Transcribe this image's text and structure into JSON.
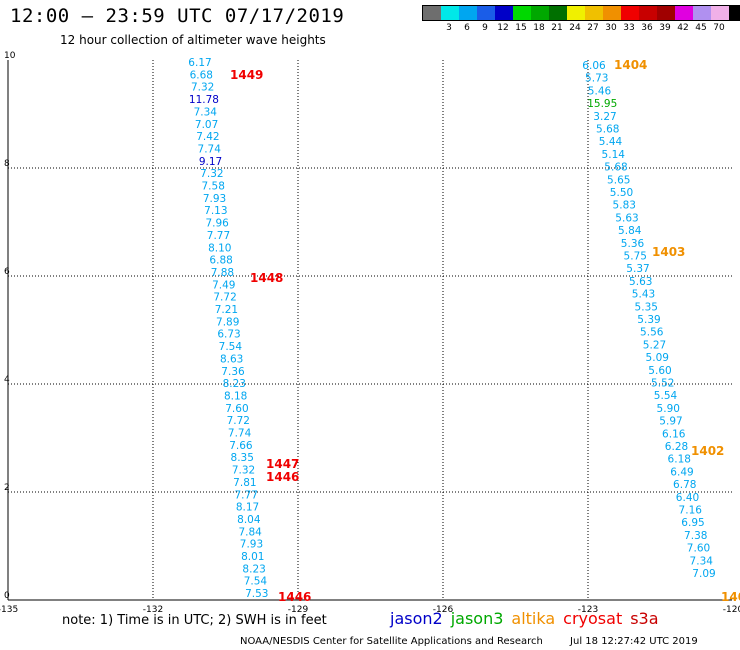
{
  "header": {
    "title": "12:00 – 23:59 UTC 07/17/2019",
    "subtitle": "12 hour collection of altimeter wave heights"
  },
  "legend": {
    "unit": "(ft)",
    "swatches": [
      {
        "color": "#6e6e6e",
        "label": ""
      },
      {
        "color": "#00e8e8",
        "label": "3"
      },
      {
        "color": "#00a6f0",
        "label": "6"
      },
      {
        "color": "#1a5de8",
        "label": "9"
      },
      {
        "color": "#0000c8",
        "label": "12"
      },
      {
        "color": "#00d800",
        "label": "15"
      },
      {
        "color": "#00a800",
        "label": "18"
      },
      {
        "color": "#007000",
        "label": "21"
      },
      {
        "color": "#f0f000",
        "label": "24"
      },
      {
        "color": "#f0c000",
        "label": "27"
      },
      {
        "color": "#f09000",
        "label": "30"
      },
      {
        "color": "#f00000",
        "label": "33"
      },
      {
        "color": "#c80000",
        "label": "36"
      },
      {
        "color": "#a00000",
        "label": "39"
      },
      {
        "color": "#e000e0",
        "label": "42"
      },
      {
        "color": "#b090f0",
        "label": "45"
      },
      {
        "color": "#f0b0e8",
        "label": "70"
      },
      {
        "color": "#000000",
        "label": ""
      }
    ]
  },
  "axes": {
    "x_ticks": [
      {
        "label": "-135"
      },
      {
        "label": "-132"
      },
      {
        "label": "-129"
      },
      {
        "label": "-126"
      },
      {
        "label": "-123"
      },
      {
        "label": "-120"
      }
    ],
    "y_ticks": [
      {
        "label": "0"
      },
      {
        "label": "2"
      },
      {
        "label": "4"
      },
      {
        "label": "6"
      },
      {
        "label": "8"
      },
      {
        "label": "10"
      }
    ]
  },
  "tracks": [
    {
      "name": "west-track",
      "values": [
        "6.17",
        "6.68",
        "7.32",
        "11.78",
        "7.34",
        "7.07",
        "7.42",
        "7.74",
        "9.17",
        "7.32",
        "7.58",
        "7.93",
        "7.13",
        "7.96",
        "7.77",
        "8.10",
        "6.88",
        "7.88",
        "7.49",
        "7.72",
        "7.21",
        "7.89",
        "6.73",
        "7.54",
        "8.63",
        "7.36",
        "8.23",
        "8.18",
        "7.60",
        "7.72",
        "7.74",
        "7.66",
        "8.35",
        "7.32",
        "7.81",
        "7.77",
        "8.17",
        "8.04",
        "7.84",
        "7.93",
        "8.01",
        "8.23",
        "7.54",
        "7.53"
      ],
      "colors": [
        "#00a6f0",
        "#00a6f0",
        "#00a6f0",
        "#0000c8",
        "#00a6f0",
        "#00a6f0",
        "#00a6f0",
        "#00a6f0",
        "#0000c8",
        "#00a6f0",
        "#00a6f0",
        "#00a6f0",
        "#00a6f0",
        "#00a6f0",
        "#00a6f0",
        "#00a6f0",
        "#00a6f0",
        "#00a6f0",
        "#00a6f0",
        "#00a6f0",
        "#00a6f0",
        "#00a6f0",
        "#00a6f0",
        "#00a6f0",
        "#00a6f0",
        "#00a6f0",
        "#00a6f0",
        "#00a6f0",
        "#00a6f0",
        "#00a6f0",
        "#00a6f0",
        "#00a6f0",
        "#00a6f0",
        "#00a6f0",
        "#00a6f0",
        "#00a6f0",
        "#00a6f0",
        "#00a6f0",
        "#00a6f0",
        "#00a6f0",
        "#00a6f0",
        "#00a6f0",
        "#00a6f0",
        "#00a6f0"
      ]
    },
    {
      "name": "east-track",
      "values": [
        "6.06",
        "5.73",
        "5.46",
        "15.95",
        "3.27",
        "5.68",
        "5.44",
        "5.14",
        "5.68",
        "5.65",
        "5.50",
        "5.83",
        "5.63",
        "5.84",
        "5.36",
        "5.75",
        "5.37",
        "5.63",
        "5.43",
        "5.35",
        "5.39",
        "5.56",
        "5.27",
        "5.09",
        "5.60",
        "5.52",
        "5.54",
        "5.90",
        "5.97",
        "6.16",
        "6.28",
        "6.18",
        "6.49",
        "6.78",
        "6.40",
        "7.16",
        "6.95",
        "7.38",
        "7.60",
        "7.34",
        "7.09"
      ],
      "colors": [
        "#00a6f0",
        "#00a6f0",
        "#00a6f0",
        "#00a800",
        "#00a6f0",
        "#00a6f0",
        "#00a6f0",
        "#00a6f0",
        "#00a6f0",
        "#00a6f0",
        "#00a6f0",
        "#00a6f0",
        "#00a6f0",
        "#00a6f0",
        "#00a6f0",
        "#00a6f0",
        "#00a6f0",
        "#00a6f0",
        "#00a6f0",
        "#00a6f0",
        "#00a6f0",
        "#00a6f0",
        "#00a6f0",
        "#00a6f0",
        "#00a6f0",
        "#00a6f0",
        "#00a6f0",
        "#00a6f0",
        "#00a6f0",
        "#00a6f0",
        "#00a6f0",
        "#00a6f0",
        "#00a6f0",
        "#00a6f0",
        "#00a6f0",
        "#00a6f0",
        "#00a6f0",
        "#00a6f0",
        "#00a6f0",
        "#00a6f0",
        "#00a6f0"
      ]
    }
  ],
  "time_labels": [
    {
      "text": "1449",
      "color": "#f00000"
    },
    {
      "text": "1448",
      "color": "#f00000"
    },
    {
      "text": "1447",
      "color": "#f00000"
    },
    {
      "text": "1446",
      "color": "#f00000"
    },
    {
      "text": "1446",
      "color": "#f00000"
    },
    {
      "text": "1404",
      "color": "#f09000"
    },
    {
      "text": "1403",
      "color": "#f09000"
    },
    {
      "text": "1402",
      "color": "#f09000"
    },
    {
      "text": "140",
      "color": "#f09000"
    }
  ],
  "note": "note:  1) Time is in UTC;  2) SWH is in feet",
  "missions": [
    {
      "name": "jason2",
      "color": "#0000c8"
    },
    {
      "name": "jason3",
      "color": "#00a800"
    },
    {
      "name": "altika",
      "color": "#f09000"
    },
    {
      "name": "cryosat",
      "color": "#f00000"
    },
    {
      "name": "s3a",
      "color": "#c80000"
    }
  ],
  "footer": {
    "credit": "NOAA/NESDIS Center for Satellite Applications and Research",
    "timestamp": "Jul 18 12:27:42 UTC 2019"
  }
}
